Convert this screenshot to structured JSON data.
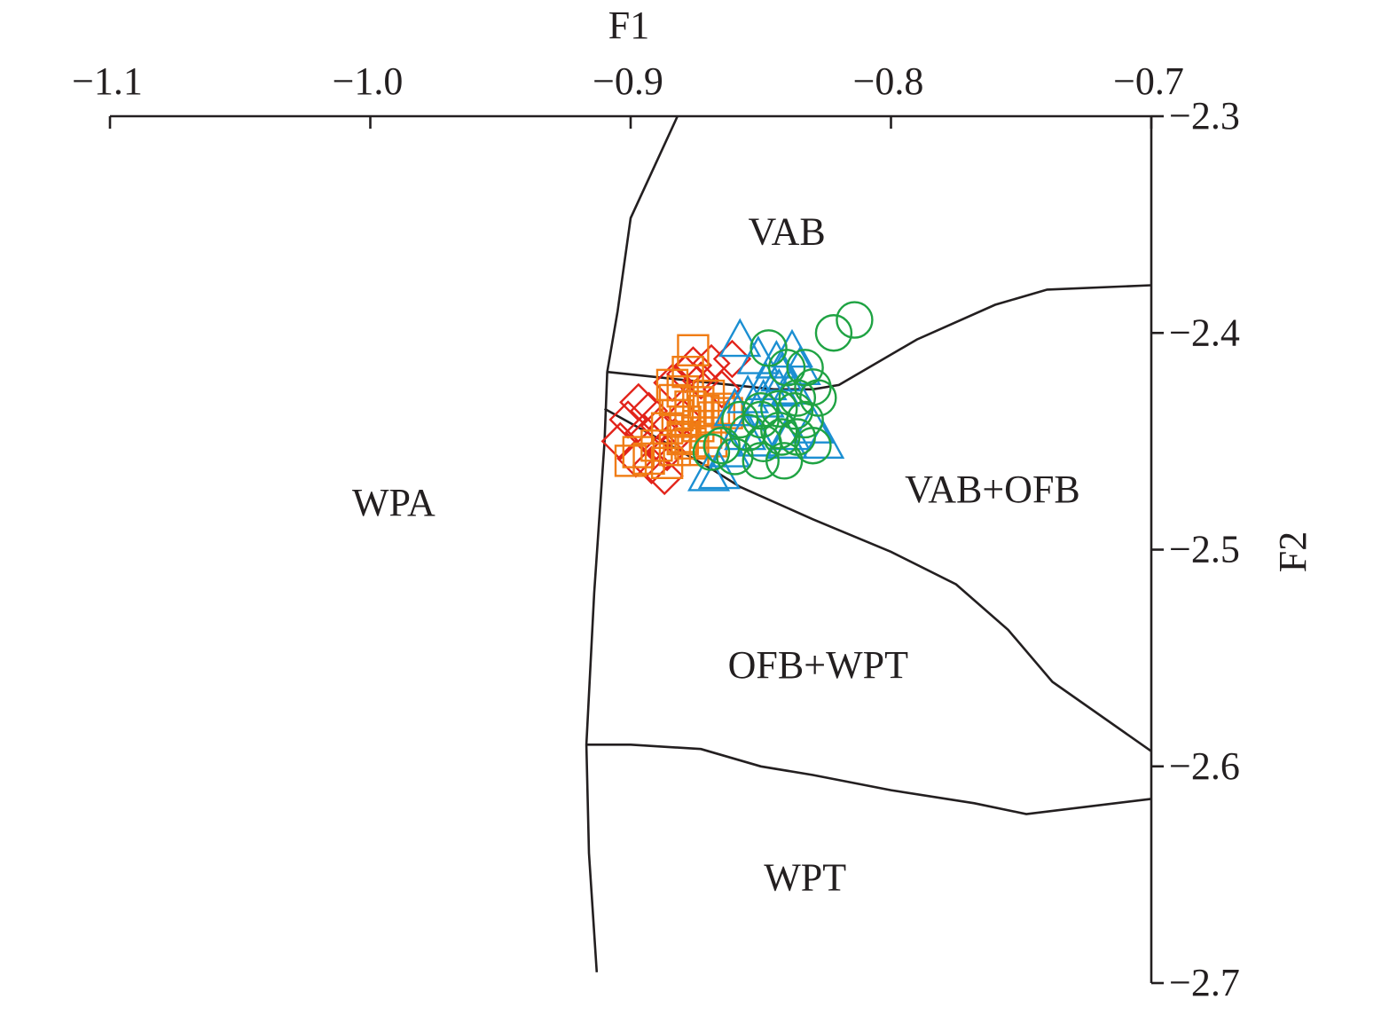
{
  "chart_data": {
    "type": "scatter",
    "title": "",
    "xlabel": "F1",
    "ylabel": "F2",
    "xlim": [
      -1.1,
      -0.7
    ],
    "ylim": [
      -2.7,
      -2.3
    ],
    "x_axis_position": "top",
    "y_axis_position": "right",
    "y_inverted": true,
    "grid": false,
    "legend": "none",
    "x_ticks": [
      "−1.1",
      "−1.0",
      "−0.9",
      "−0.8",
      "−0.7"
    ],
    "y_ticks": [
      "−2.3",
      "−2.4",
      "−2.5",
      "−2.6",
      "−2.7"
    ],
    "fields": [
      {
        "label": "VAB",
        "x": -0.84,
        "y": -2.353
      },
      {
        "label": "WPA",
        "x": -0.991,
        "y": -2.478
      },
      {
        "label": "VAB+OFB",
        "x": -0.761,
        "y": -2.472
      },
      {
        "label": "OFB+WPT",
        "x": -0.828,
        "y": -2.553
      },
      {
        "label": "WPT",
        "x": -0.833,
        "y": -2.651
      }
    ],
    "boundaries": [
      {
        "name": "left-boundary",
        "points": [
          [
            -0.882,
            -2.3
          ],
          [
            -0.9,
            -2.347
          ],
          [
            -0.905,
            -2.39
          ],
          [
            -0.909,
            -2.418
          ],
          [
            -0.91,
            -2.45
          ],
          [
            -0.914,
            -2.52
          ],
          [
            -0.917,
            -2.59
          ],
          [
            -0.916,
            -2.64
          ],
          [
            -0.913,
            -2.695
          ]
        ]
      },
      {
        "name": "vab-upper-boundary",
        "points": [
          [
            -0.909,
            -2.418
          ],
          [
            -0.845,
            -2.426
          ],
          [
            -0.83,
            -2.426
          ],
          [
            -0.82,
            -2.424
          ],
          [
            -0.79,
            -2.403
          ],
          [
            -0.76,
            -2.387
          ],
          [
            -0.74,
            -2.38
          ],
          [
            -0.7,
            -2.378
          ]
        ]
      },
      {
        "name": "ofb-boundary",
        "points": [
          [
            -0.91,
            -2.435
          ],
          [
            -0.889,
            -2.449
          ],
          [
            -0.87,
            -2.462
          ],
          [
            -0.858,
            -2.471
          ],
          [
            -0.83,
            -2.486
          ],
          [
            -0.8,
            -2.501
          ],
          [
            -0.775,
            -2.516
          ],
          [
            -0.755,
            -2.537
          ],
          [
            -0.738,
            -2.561
          ],
          [
            -0.7,
            -2.593
          ]
        ]
      },
      {
        "name": "wpt-boundary",
        "points": [
          [
            -0.917,
            -2.59
          ],
          [
            -0.9,
            -2.59
          ],
          [
            -0.873,
            -2.592
          ],
          [
            -0.85,
            -2.6
          ],
          [
            -0.83,
            -2.604
          ],
          [
            -0.8,
            -2.611
          ],
          [
            -0.768,
            -2.617
          ],
          [
            -0.748,
            -2.622
          ],
          [
            -0.7,
            -2.615
          ]
        ]
      }
    ],
    "series": [
      {
        "marker": "diamond",
        "color": "#e2231a",
        "points": [
          [
            -0.897,
            -2.432
          ],
          [
            -0.893,
            -2.436
          ],
          [
            -0.901,
            -2.44
          ],
          [
            -0.889,
            -2.443
          ],
          [
            -0.895,
            -2.446
          ],
          [
            -0.904,
            -2.45
          ],
          [
            -0.891,
            -2.451
          ],
          [
            -0.886,
            -2.455
          ],
          [
            -0.898,
            -2.458
          ],
          [
            -0.892,
            -2.461
          ],
          [
            -0.883,
            -2.448
          ],
          [
            -0.88,
            -2.439
          ],
          [
            -0.884,
            -2.423
          ],
          [
            -0.879,
            -2.419
          ],
          [
            -0.876,
            -2.415
          ],
          [
            -0.869,
            -2.414
          ],
          [
            -0.865,
            -2.426
          ],
          [
            -0.861,
            -2.412
          ],
          [
            -0.873,
            -2.422
          ],
          [
            -0.887,
            -2.466
          ]
        ]
      },
      {
        "marker": "square",
        "color": "#f07c14",
        "points": [
          [
            -0.876,
            -2.408
          ],
          [
            -0.878,
            -2.418
          ],
          [
            -0.88,
            -2.427
          ],
          [
            -0.883,
            -2.431
          ],
          [
            -0.877,
            -2.434
          ],
          [
            -0.872,
            -2.436
          ],
          [
            -0.882,
            -2.438
          ],
          [
            -0.868,
            -2.439
          ],
          [
            -0.879,
            -2.441
          ],
          [
            -0.874,
            -2.443
          ],
          [
            -0.886,
            -2.444
          ],
          [
            -0.871,
            -2.446
          ],
          [
            -0.88,
            -2.448
          ],
          [
            -0.877,
            -2.451
          ],
          [
            -0.89,
            -2.452
          ],
          [
            -0.883,
            -2.454
          ],
          [
            -0.897,
            -2.455
          ],
          [
            -0.893,
            -2.458
          ],
          [
            -0.886,
            -2.46
          ],
          [
            -0.9,
            -2.459
          ],
          [
            -0.874,
            -2.432
          ],
          [
            -0.87,
            -2.429
          ],
          [
            -0.866,
            -2.435
          ],
          [
            -0.863,
            -2.437
          ],
          [
            -0.884,
            -2.424
          ],
          [
            -0.88,
            -2.449
          ],
          [
            -0.876,
            -2.454
          ],
          [
            -0.869,
            -2.45
          ]
        ]
      },
      {
        "marker": "triangle",
        "color": "#1b8fd2",
        "points": [
          [
            -0.858,
            -2.404
          ],
          [
            -0.851,
            -2.412
          ],
          [
            -0.844,
            -2.414
          ],
          [
            -0.838,
            -2.409
          ],
          [
            -0.835,
            -2.417
          ],
          [
            -0.842,
            -2.42
          ],
          [
            -0.848,
            -2.424
          ],
          [
            -0.855,
            -2.43
          ],
          [
            -0.86,
            -2.436
          ],
          [
            -0.849,
            -2.432
          ],
          [
            -0.843,
            -2.427
          ],
          [
            -0.838,
            -2.426
          ],
          [
            -0.83,
            -2.444
          ],
          [
            -0.826,
            -2.451
          ],
          [
            -0.856,
            -2.447
          ],
          [
            -0.851,
            -2.45
          ],
          [
            -0.839,
            -2.447
          ],
          [
            -0.866,
            -2.465
          ],
          [
            -0.87,
            -2.466
          ],
          [
            -0.862,
            -2.455
          ],
          [
            -0.84,
            -2.451
          ]
        ]
      },
      {
        "marker": "circle",
        "color": "#1fa343",
        "points": [
          [
            -0.814,
            -2.394
          ],
          [
            -0.822,
            -2.4
          ],
          [
            -0.847,
            -2.407
          ],
          [
            -0.84,
            -2.416
          ],
          [
            -0.833,
            -2.416
          ],
          [
            -0.83,
            -2.425
          ],
          [
            -0.828,
            -2.43
          ],
          [
            -0.836,
            -2.43
          ],
          [
            -0.843,
            -2.435
          ],
          [
            -0.85,
            -2.436
          ],
          [
            -0.837,
            -2.436
          ],
          [
            -0.833,
            -2.44
          ],
          [
            -0.85,
            -2.44
          ],
          [
            -0.858,
            -2.44
          ],
          [
            -0.843,
            -2.445
          ],
          [
            -0.855,
            -2.446
          ],
          [
            -0.842,
            -2.448
          ],
          [
            -0.836,
            -2.448
          ],
          [
            -0.865,
            -2.452
          ],
          [
            -0.86,
            -2.457
          ],
          [
            -0.849,
            -2.451
          ],
          [
            -0.83,
            -2.452
          ],
          [
            -0.869,
            -2.455
          ],
          [
            -0.841,
            -2.459
          ],
          [
            -0.85,
            -2.459
          ]
        ]
      }
    ]
  }
}
